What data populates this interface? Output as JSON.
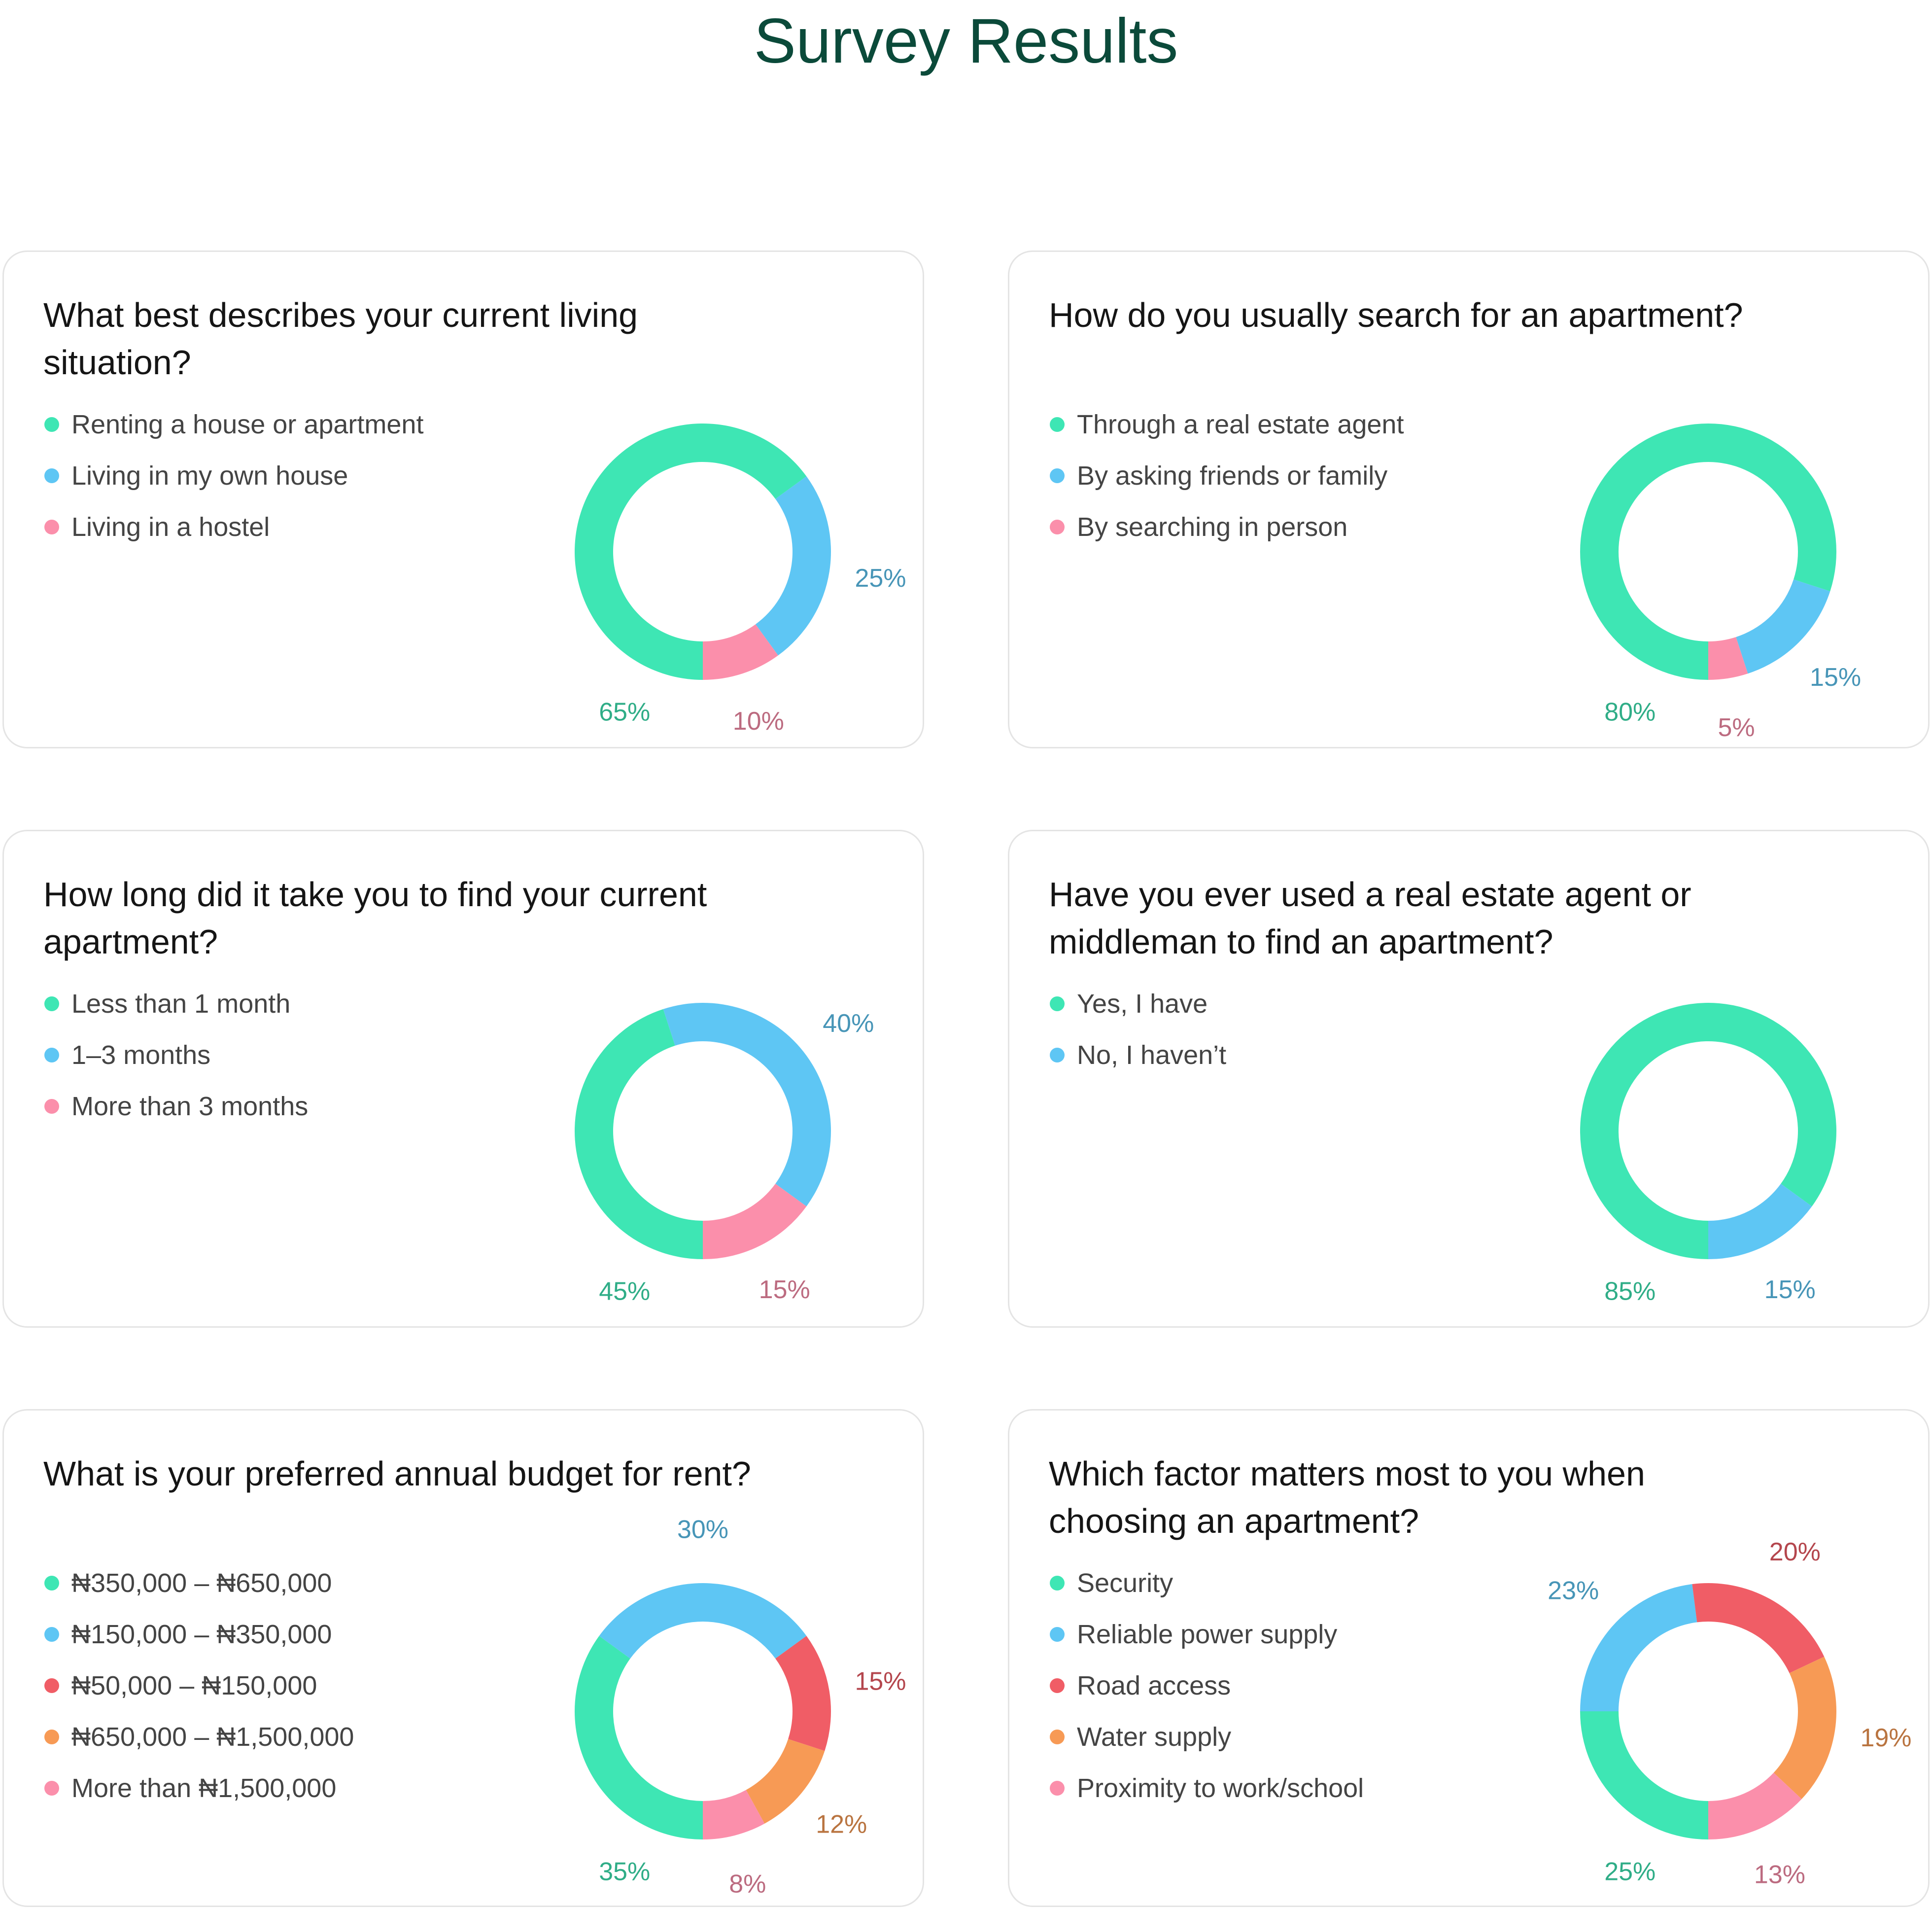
{
  "title": "Survey Results",
  "chart_data": [
    {
      "type": "donut",
      "title": "What best describes your current living situation?",
      "categories": [
        "Renting a house or apartment",
        "Living in my own house",
        "Living in a hostel"
      ],
      "values": [
        65,
        25,
        10
      ],
      "value_labels": [
        "65%",
        "25%",
        "10%"
      ],
      "colors": [
        "#3ee6b4",
        "#5ec6f4",
        "#fb8fab"
      ]
    },
    {
      "type": "donut",
      "title": "How do you usually search for an apartment?",
      "categories": [
        "Through a real estate agent",
        "By asking friends or family",
        "By searching in person"
      ],
      "values": [
        80,
        15,
        5
      ],
      "value_labels": [
        "80%",
        "15%",
        "5%"
      ],
      "colors": [
        "#3ee6b4",
        "#5ec6f4",
        "#fb8fab"
      ]
    },
    {
      "type": "donut",
      "title": "How long did it take you to find your current apartment?",
      "categories": [
        "Less than 1 month",
        "1–3 months",
        "More than 3 months"
      ],
      "values": [
        45,
        40,
        15
      ],
      "value_labels": [
        "45%",
        "40%",
        "15%"
      ],
      "colors": [
        "#3ee6b4",
        "#5ec6f4",
        "#fb8fab"
      ]
    },
    {
      "type": "donut",
      "title": "Have you ever used a real estate agent or middleman to find an apartment?",
      "categories": [
        "Yes, I have",
        "No, I haven’t"
      ],
      "values": [
        85,
        15
      ],
      "value_labels": [
        "85%",
        "15%"
      ],
      "colors": [
        "#3ee6b4",
        "#5ec6f4"
      ]
    },
    {
      "type": "donut",
      "title": "What is your preferred annual budget for rent?",
      "categories": [
        "₦350,000 – ₦650,000",
        "₦150,000 – ₦350,000",
        "₦50,000 – ₦150,000",
        "₦650,000 – ₦1,500,000",
        "More than ₦1,500,000"
      ],
      "values": [
        35,
        30,
        15,
        12,
        8
      ],
      "value_labels": [
        "35%",
        "30%",
        "15%",
        "12%",
        "8%"
      ],
      "colors": [
        "#3ee6b4",
        "#5ec6f4",
        "#f05d66",
        "#f79a55",
        "#fb8fab"
      ]
    },
    {
      "type": "donut",
      "title": "Which factor matters most to you when choosing an apartment?",
      "categories": [
        "Security",
        "Reliable power supply",
        "Road access",
        "Water supply",
        "Proximity to work/school"
      ],
      "values": [
        25,
        23,
        20,
        19,
        13
      ],
      "value_labels": [
        "25%",
        "23%",
        "20%",
        "19%",
        "13%"
      ],
      "colors": [
        "#3ee6b4",
        "#5ec6f4",
        "#f05d66",
        "#f79a55",
        "#fb8fab"
      ]
    }
  ]
}
